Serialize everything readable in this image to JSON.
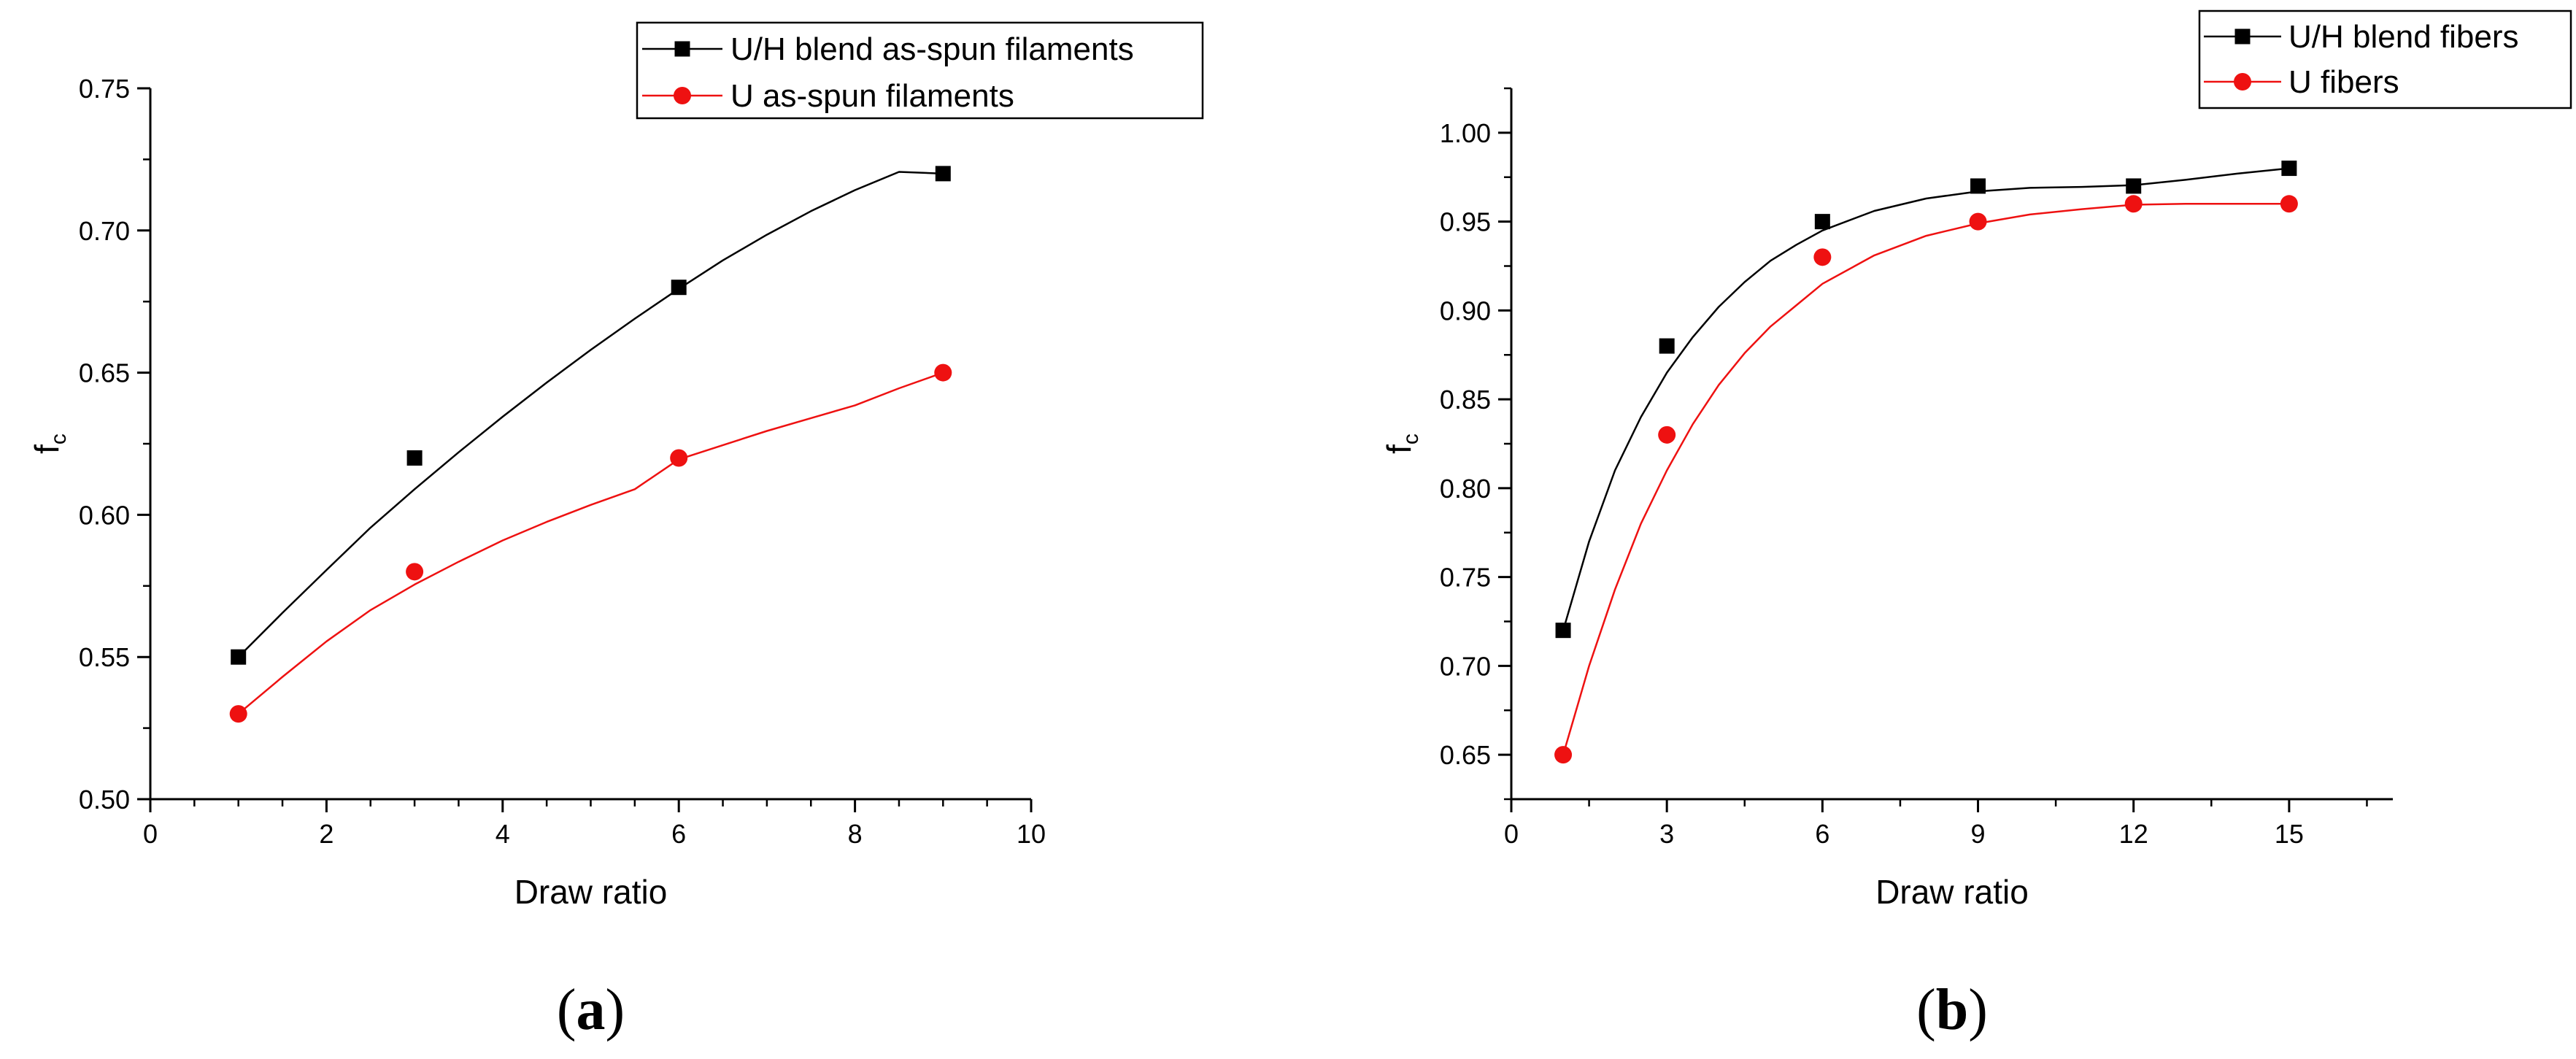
{
  "chart_data": [
    {
      "type": "line",
      "panel_label": "(a)",
      "panel_label_letter": "a",
      "xlabel": "Draw ratio",
      "ylabel_main": "f",
      "ylabel_sub": "c",
      "xlim": [
        0,
        10
      ],
      "ylim": [
        0.5,
        0.75
      ],
      "xticks": [
        0,
        2,
        4,
        6,
        8,
        10
      ],
      "xtick_labels": [
        "0",
        "2",
        "4",
        "6",
        "8",
        "10"
      ],
      "yticks": [
        0.5,
        0.55,
        0.6,
        0.65,
        0.7,
        0.75
      ],
      "ytick_labels": [
        "0.50",
        "0.55",
        "0.60",
        "0.65",
        "0.70",
        "0.75"
      ],
      "legend_position": "top-right",
      "grid": false,
      "series": [
        {
          "name": "U/H blend as-spun filaments",
          "marker": "square",
          "color": "#000000",
          "x": [
            1,
            3,
            6,
            9
          ],
          "y": [
            0.55,
            0.62,
            0.68,
            0.72
          ],
          "fit": [
            [
              1,
              0.55
            ],
            [
              1.5,
              0.5655
            ],
            [
              2,
              0.5806
            ],
            [
              2.5,
              0.5955
            ],
            [
              3,
              0.609
            ],
            [
              3.5,
              0.622
            ],
            [
              4,
              0.6345
            ],
            [
              4.5,
              0.6465
            ],
            [
              5,
              0.658
            ],
            [
              5.5,
              0.669
            ],
            [
              6,
              0.6795
            ],
            [
              6.5,
              0.6895
            ],
            [
              7,
              0.6985
            ],
            [
              7.5,
              0.7068
            ],
            [
              8,
              0.7142
            ],
            [
              8.5,
              0.7206
            ],
            [
              9,
              0.72
            ]
          ]
        },
        {
          "name": "U as-spun filaments",
          "marker": "circle",
          "color": "#ee1111",
          "x": [
            1,
            3,
            6,
            9
          ],
          "y": [
            0.53,
            0.58,
            0.62,
            0.65
          ],
          "fit": [
            [
              1,
              0.53
            ],
            [
              1.5,
              0.543
            ],
            [
              2,
              0.5555
            ],
            [
              2.5,
              0.5665
            ],
            [
              3,
              0.5755
            ],
            [
              3.5,
              0.5835
            ],
            [
              4,
              0.591
            ],
            [
              4.5,
              0.5975
            ],
            [
              5,
              0.6035
            ],
            [
              5.5,
              0.609
            ],
            [
              6,
              0.6195
            ],
            [
              6.5,
              0.6245
            ],
            [
              7,
              0.6295
            ],
            [
              7.5,
              0.634
            ],
            [
              8,
              0.6385
            ],
            [
              8.5,
              0.6445
            ],
            [
              9,
              0.65
            ]
          ]
        }
      ]
    },
    {
      "type": "line",
      "panel_label": "(b)",
      "panel_label_letter": "b",
      "xlabel": "Draw ratio",
      "ylabel_main": "f",
      "ylabel_sub": "c",
      "xlim": [
        0,
        17
      ],
      "ylim": [
        0.625,
        1.025
      ],
      "xticks": [
        0,
        3,
        6,
        9,
        12,
        15
      ],
      "xtick_labels": [
        "0",
        "3",
        "6",
        "9",
        "12",
        "15"
      ],
      "yticks": [
        0.65,
        0.7,
        0.75,
        0.8,
        0.85,
        0.9,
        0.95,
        1.0
      ],
      "ytick_labels": [
        "0.65",
        "0.70",
        "0.75",
        "0.80",
        "0.85",
        "0.90",
        "0.95",
        "1.00"
      ],
      "legend_position": "top-right",
      "grid": false,
      "series": [
        {
          "name": "U/H blend fibers",
          "marker": "square",
          "color": "#000000",
          "x": [
            1,
            3,
            6,
            9,
            12,
            15
          ],
          "y": [
            0.72,
            0.88,
            0.95,
            0.97,
            0.97,
            0.98
          ],
          "fit": [
            [
              1,
              0.72
            ],
            [
              1.5,
              0.77
            ],
            [
              2,
              0.81
            ],
            [
              2.5,
              0.84
            ],
            [
              3,
              0.865
            ],
            [
              3.5,
              0.885
            ],
            [
              4,
              0.902
            ],
            [
              4.5,
              0.916
            ],
            [
              5,
              0.928
            ],
            [
              5.5,
              0.937
            ],
            [
              6,
              0.945
            ],
            [
              7,
              0.956
            ],
            [
              8,
              0.963
            ],
            [
              9,
              0.967
            ],
            [
              10,
              0.969
            ],
            [
              11,
              0.9695
            ],
            [
              12,
              0.9705
            ],
            [
              13,
              0.9735
            ],
            [
              14,
              0.977
            ],
            [
              15,
              0.98
            ]
          ]
        },
        {
          "name": "U fibers",
          "marker": "circle",
          "color": "#ee1111",
          "x": [
            1,
            3,
            6,
            9,
            12,
            15
          ],
          "y": [
            0.65,
            0.83,
            0.93,
            0.95,
            0.96,
            0.96
          ],
          "fit": [
            [
              1,
              0.65
            ],
            [
              1.5,
              0.7
            ],
            [
              2,
              0.743
            ],
            [
              2.5,
              0.78
            ],
            [
              3,
              0.81
            ],
            [
              3.5,
              0.836
            ],
            [
              4,
              0.858
            ],
            [
              4.5,
              0.876
            ],
            [
              5,
              0.891
            ],
            [
              5.5,
              0.903
            ],
            [
              6,
              0.915
            ],
            [
              7,
              0.931
            ],
            [
              8,
              0.942
            ],
            [
              9,
              0.949
            ],
            [
              10,
              0.954
            ],
            [
              11,
              0.957
            ],
            [
              12,
              0.9595
            ],
            [
              13,
              0.96
            ],
            [
              14,
              0.96
            ],
            [
              15,
              0.96
            ]
          ]
        }
      ]
    }
  ]
}
